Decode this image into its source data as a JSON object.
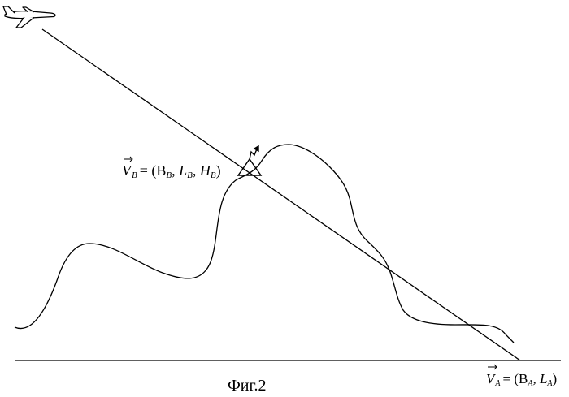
{
  "figure": {
    "caption": "Фиг.2",
    "label_b": {
      "vec": "V",
      "sub": "B",
      "rhs": "= (B",
      "b_sub": "B",
      "comma1": ", L",
      "l_sub": "B",
      "comma2": ", H",
      "h_sub": "B",
      "close": ")"
    },
    "label_a": {
      "vec": "V",
      "sub": "A",
      "rhs": "= (B",
      "b_sub": "A",
      "comma1": ", L",
      "l_sub": "A",
      "close": ")"
    }
  },
  "icons": {
    "aircraft": "airplane-icon",
    "signal_antenna": "transmitter-antenna-icon"
  },
  "colors": {
    "line": "#000000",
    "background": "#ffffff"
  }
}
